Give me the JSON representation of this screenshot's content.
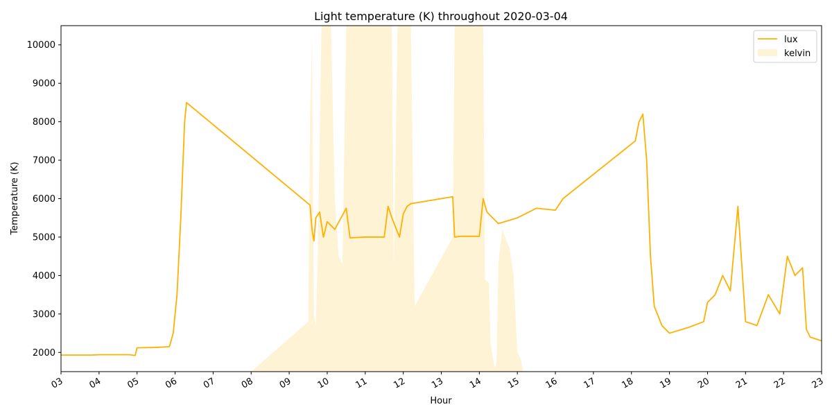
{
  "chart_data": {
    "type": "line",
    "title": "Light temperature (K) throughout 2020-03-04",
    "xlabel": "Hour",
    "ylabel": "Temperature (K)",
    "xlim": [
      3,
      23
    ],
    "ylim": [
      1500,
      10500
    ],
    "x_ticks": [
      "03",
      "04",
      "05",
      "06",
      "07",
      "08",
      "09",
      "10",
      "11",
      "12",
      "13",
      "14",
      "15",
      "16",
      "17",
      "18",
      "19",
      "20",
      "21",
      "22",
      "23"
    ],
    "y_ticks": [
      2000,
      3000,
      4000,
      5000,
      6000,
      7000,
      8000,
      9000,
      10000
    ],
    "legend": {
      "position": "top-right",
      "entries": [
        "lux",
        "kelvin"
      ]
    },
    "colors": {
      "lux": "#ffb000",
      "kelvin": "#fff3d6"
    },
    "series": [
      {
        "name": "lux",
        "style": "line",
        "x": [
          3.0,
          3.3,
          3.8,
          4.0,
          4.8,
          4.95,
          5.0,
          5.5,
          5.85,
          5.95,
          6.05,
          6.15,
          6.25,
          6.3,
          9.55,
          9.6,
          9.65,
          9.7,
          9.8,
          9.9,
          10.0,
          10.2,
          10.5,
          10.6,
          11.0,
          11.5,
          11.6,
          11.7,
          11.9,
          12.0,
          12.1,
          12.2,
          13.3,
          13.35,
          13.5,
          14.0,
          14.1,
          14.2,
          14.5,
          15.0,
          15.5,
          16.0,
          16.2,
          18.1,
          18.2,
          18.3,
          18.4,
          18.5,
          18.6,
          18.8,
          19.0,
          19.5,
          19.9,
          20.0,
          20.2,
          20.4,
          20.6,
          20.8,
          21.0,
          21.3,
          21.6,
          21.9,
          22.1,
          22.3,
          22.5,
          22.6,
          22.7,
          23.0
        ],
        "y": [
          1930,
          1930,
          1930,
          1940,
          1940,
          1920,
          2120,
          2130,
          2150,
          2500,
          3500,
          5500,
          8000,
          8500,
          5830,
          5200,
          4900,
          5500,
          5650,
          5000,
          5400,
          5200,
          5750,
          4980,
          5000,
          5000,
          5800,
          5500,
          5000,
          5600,
          5800,
          5870,
          6050,
          5000,
          5020,
          5020,
          6000,
          5650,
          5350,
          5500,
          5750,
          5700,
          6000,
          7500,
          8000,
          8200,
          7000,
          4500,
          3200,
          2700,
          2500,
          2650,
          2800,
          3300,
          3500,
          4000,
          3600,
          5800,
          2800,
          2700,
          3500,
          3000,
          4500,
          4000,
          4200,
          2600,
          2400,
          2300
        ]
      },
      {
        "name": "kelvin",
        "style": "area",
        "x": [
          8.0,
          9.5,
          9.55,
          9.6,
          9.65,
          9.7,
          9.75,
          9.85,
          9.9,
          10.1,
          10.2,
          10.3,
          10.4,
          10.5,
          10.55,
          11.7,
          11.75,
          11.85,
          12.2,
          12.3,
          13.3,
          13.35,
          14.1,
          14.15,
          14.25,
          14.3,
          14.4,
          14.45,
          14.5,
          14.6,
          14.8,
          14.9,
          15.0,
          15.1,
          15.15
        ],
        "y": [
          1500,
          2800,
          8200,
          10200,
          3000,
          2700,
          4500,
          10500,
          10500,
          10500,
          6000,
          4500,
          4300,
          10500,
          10500,
          10500,
          4200,
          10500,
          10500,
          3200,
          5000,
          10500,
          10500,
          3900,
          3800,
          2200,
          1600,
          1700,
          4300,
          5200,
          4700,
          4000,
          2000,
          1800,
          1500
        ]
      }
    ]
  }
}
